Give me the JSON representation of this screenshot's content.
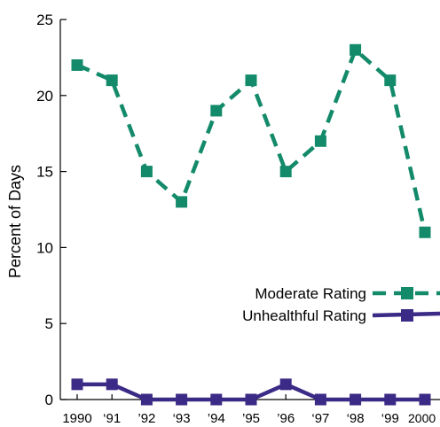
{
  "chart_data": {
    "type": "line",
    "title": "",
    "xlabel": "",
    "ylabel": "Percent of Days",
    "ylim": [
      0,
      25
    ],
    "yticks": [
      0,
      5,
      10,
      15,
      20,
      25
    ],
    "categories": [
      "1990",
      "‘91",
      "’92",
      "‘93",
      "’94",
      "’95",
      "’96",
      "‘97",
      "‘98",
      "‘99",
      "2000"
    ],
    "grid": false,
    "series": [
      {
        "name": "Moderate Rating",
        "color": "#138a6a",
        "line_style": "dashed",
        "marker": "square",
        "values": [
          22,
          21,
          15,
          13,
          19,
          21,
          15,
          17,
          23,
          21,
          11
        ]
      },
      {
        "name": "Unhealthful Rating",
        "color": "#3b2a86",
        "line_style": "solid",
        "marker": "square",
        "values": [
          1,
          1,
          0,
          0,
          0,
          0,
          1,
          0,
          0,
          0,
          0
        ]
      }
    ],
    "legend_position": "right"
  }
}
